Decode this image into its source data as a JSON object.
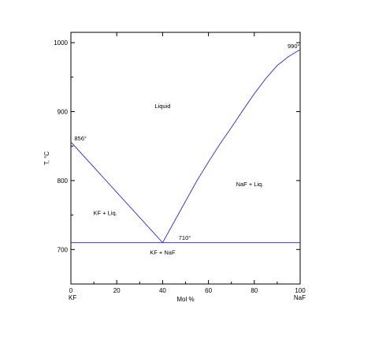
{
  "chart_data": {
    "type": "line",
    "title": "",
    "xlabel": "Mol %",
    "ylabel": "T, °C",
    "xlim": [
      0,
      100
    ],
    "ylim": [
      650,
      1015
    ],
    "grid": false,
    "x_ticks": [
      0,
      20,
      40,
      60,
      80,
      100
    ],
    "y_ticks": [
      700,
      800,
      900,
      1000
    ],
    "x_end_labels": {
      "left": "KF",
      "right": "NaF"
    },
    "series": [
      {
        "values": [
          [
            0,
            856
          ],
          [
            40,
            710
          ]
        ]
      },
      {
        "values": [
          [
            40,
            710
          ],
          [
            45,
            740
          ],
          [
            50,
            770
          ],
          [
            55,
            800
          ],
          [
            60,
            827
          ],
          [
            65,
            853
          ],
          [
            70,
            877
          ],
          [
            75,
            902
          ],
          [
            80,
            926
          ],
          [
            85,
            948
          ],
          [
            90,
            967
          ],
          [
            95,
            980
          ],
          [
            100,
            990
          ]
        ]
      },
      {
        "values": [
          [
            0,
            710
          ],
          [
            100,
            710
          ]
        ]
      }
    ],
    "annotations": [
      {
        "text": "856°",
        "x": 1.5,
        "y": 858
      },
      {
        "text": "990°",
        "x": 94.5,
        "y": 992
      },
      {
        "text": "710°",
        "x": 47,
        "y": 714
      },
      {
        "text": "Liquid",
        "x": 40,
        "y": 905
      },
      {
        "text": "NaF + Liq.",
        "x": 78,
        "y": 792
      },
      {
        "text": "KF + Liq.",
        "x": 15,
        "y": 750
      },
      {
        "text": "KF + NaF",
        "x": 40,
        "y": 693
      }
    ]
  },
  "colors": {
    "series": "#3b3bd6",
    "axis": "#000000"
  }
}
